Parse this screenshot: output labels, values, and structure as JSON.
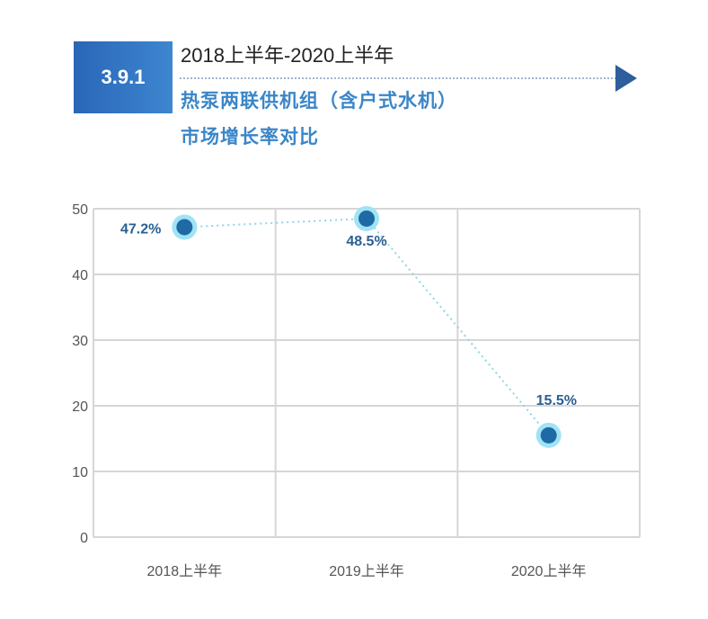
{
  "header": {
    "section_number": "3.9.1",
    "period": "2018上半年-2020上半年",
    "title_line1": "热泵两联供机组（含户式水机）",
    "title_line2": "市场增长率对比"
  },
  "chart_data": {
    "type": "line",
    "categories": [
      "2018上半年",
      "2019上半年",
      "2020上半年"
    ],
    "values": [
      47.2,
      48.5,
      15.5
    ],
    "data_labels": [
      "47.2%",
      "48.5%",
      "15.5%"
    ],
    "ylim": [
      0,
      50
    ],
    "yticks": [
      0,
      10,
      20,
      30,
      40,
      50
    ],
    "grid": true,
    "colors": {
      "marker": "#1f6aa5",
      "halo": "#9fe3f5",
      "line": "#8fd4e6",
      "grid": "#d6d6d6"
    }
  }
}
